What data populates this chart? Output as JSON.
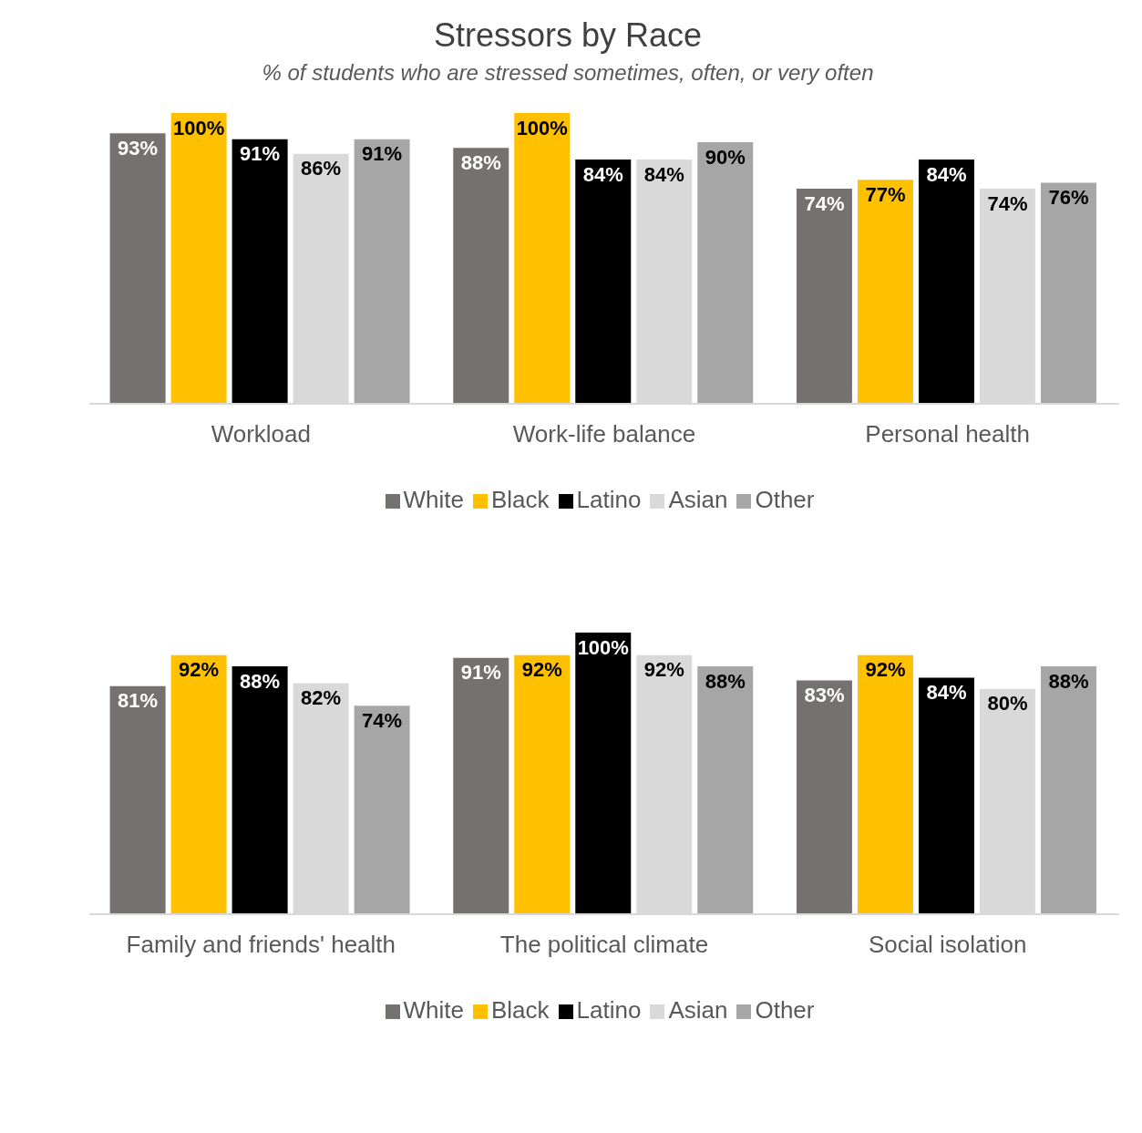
{
  "chart_data": [
    {
      "type": "bar",
      "title": "Stressors by Race",
      "subtitle": "% of students who are stressed sometimes, often, or very often",
      "categories": [
        "Workload",
        "Work-life balance",
        "Personal health"
      ],
      "legend": "bottom",
      "series": [
        {
          "name": "White",
          "color": "#767171",
          "values": [
            93,
            88,
            74
          ],
          "value_labels": [
            "93%",
            "88%",
            "74%"
          ]
        },
        {
          "name": "Black",
          "color": "#ffc000",
          "values": [
            100,
            100,
            77
          ],
          "value_labels": [
            "100%",
            "100%",
            "77%"
          ]
        },
        {
          "name": "Latino",
          "color": "#000000",
          "values": [
            91,
            84,
            84
          ],
          "value_labels": [
            "91%",
            "84%",
            "84%"
          ]
        },
        {
          "name": "Asian",
          "color": "#d9d9d9",
          "values": [
            86,
            84,
            74
          ],
          "value_labels": [
            "86%",
            "84%",
            "74%"
          ]
        },
        {
          "name": "Other",
          "color": "#a6a6a6",
          "values": [
            91,
            90,
            76
          ],
          "value_labels": [
            "91%",
            "90%",
            "76%"
          ]
        }
      ]
    },
    {
      "type": "bar",
      "categories": [
        "Family and friends' health",
        "The political climate",
        "Social isolation"
      ],
      "legend": "bottom",
      "series": [
        {
          "name": "White",
          "color": "#767171",
          "values": [
            81,
            91,
            83
          ],
          "value_labels": [
            "81%",
            "91%",
            "83%"
          ]
        },
        {
          "name": "Black",
          "color": "#ffc000",
          "values": [
            92,
            92,
            92
          ],
          "value_labels": [
            "92%",
            "92%",
            "92%"
          ]
        },
        {
          "name": "Latino",
          "color": "#000000",
          "values": [
            88,
            100,
            84
          ],
          "value_labels": [
            "88%",
            "100%",
            "84%"
          ]
        },
        {
          "name": "Asian",
          "color": "#d9d9d9",
          "values": [
            82,
            92,
            80
          ],
          "value_labels": [
            "82%",
            "92%",
            "80%"
          ]
        },
        {
          "name": "Other",
          "color": "#a6a6a6",
          "values": [
            74,
            88,
            88
          ],
          "value_labels": [
            "74%",
            "88%",
            "88%"
          ]
        }
      ]
    }
  ]
}
